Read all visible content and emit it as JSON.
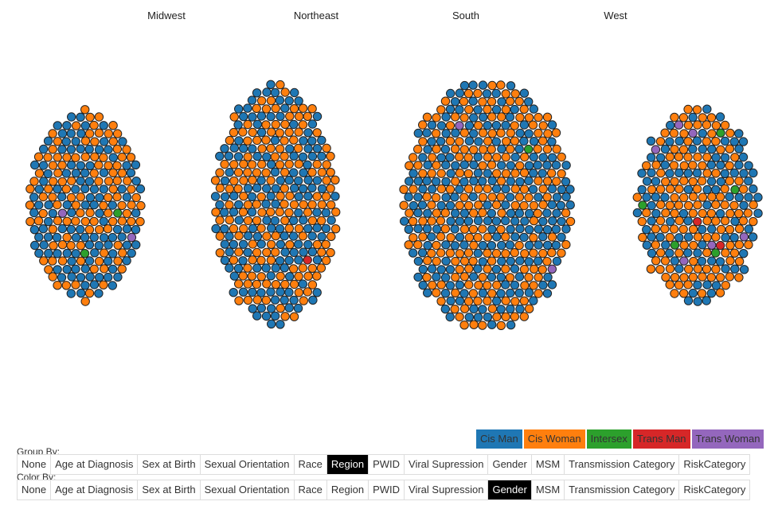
{
  "chart_data": {
    "type": "scatter",
    "title": "",
    "groups": [
      {
        "name": "Midwest",
        "counts": {
          "Cis Man": 119,
          "Cis Woman": 110,
          "Intersex": 2,
          "Trans Man": 0,
          "Trans Woman": 2
        }
      },
      {
        "name": "Northeast",
        "counts": {
          "Cis Man": 156,
          "Cis Woman": 162,
          "Intersex": 0,
          "Trans Man": 1,
          "Trans Woman": 0
        }
      },
      {
        "name": "South",
        "counts": {
          "Cis Man": 230,
          "Cis Woman": 223,
          "Intersex": 1,
          "Trans Man": 0,
          "Trans Woman": 2
        }
      },
      {
        "name": "West",
        "counts": {
          "Cis Man": 102,
          "Cis Woman": 140,
          "Intersex": 5,
          "Trans Man": 2,
          "Trans Woman": 6
        }
      }
    ],
    "legend": [
      {
        "label": "Cis Man",
        "color": "#1f77b4"
      },
      {
        "label": "Cis Woman",
        "color": "#ff7f0e"
      },
      {
        "label": "Intersex",
        "color": "#2ca02c"
      },
      {
        "label": "Trans Man",
        "color": "#d62728"
      },
      {
        "label": "Trans Woman",
        "color": "#9467bd"
      }
    ],
    "legend_placement": "bottom-right"
  },
  "controls": {
    "group_by": {
      "label": "Group By:",
      "options": [
        "None",
        "Age at Diagnosis",
        "Sex at Birth",
        "Sexual Orientation",
        "Race",
        "Region",
        "PWID",
        "Viral Supression",
        "Gender",
        "MSM",
        "Transmission Category",
        "RiskCategory"
      ],
      "selected": "Region"
    },
    "color_by": {
      "label": "Color By:",
      "options": [
        "None",
        "Age at Diagnosis",
        "Sex at Birth",
        "Sexual Orientation",
        "Race",
        "Region",
        "PWID",
        "Viral Supression",
        "Gender",
        "MSM",
        "Transmission Category",
        "RiskCategory"
      ],
      "selected": "Gender"
    }
  }
}
